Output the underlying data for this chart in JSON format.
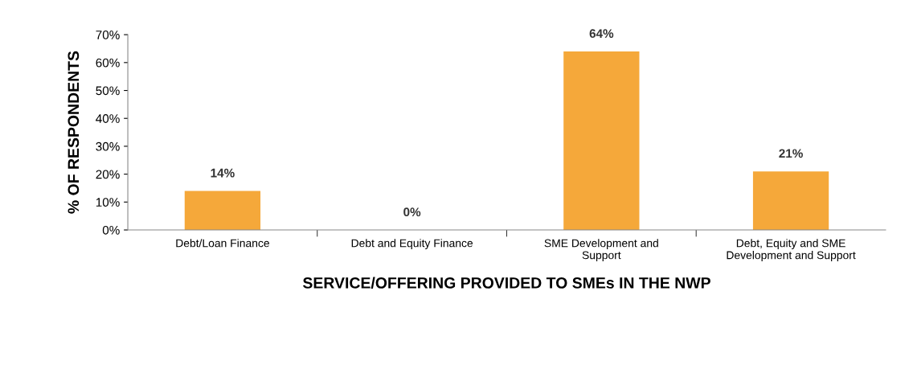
{
  "chart_data": {
    "type": "bar",
    "xlabel": "SERVICE/OFFERING PROVIDED TO SMEs IN THE NWP",
    "ylabel": "% OF RESPONDENTS",
    "categories": [
      "Debt/Loan Finance",
      "Debt and Equity Finance",
      "SME Development and\nSupport",
      "Debt, Equity and SME\nDevelopment and Support"
    ],
    "values": [
      14,
      0,
      64,
      21
    ],
    "value_labels": [
      "14%",
      "0%",
      "64%",
      "21%"
    ],
    "color": "#f5a83a",
    "ylim": [
      0,
      70
    ],
    "yticks": [
      {
        "value": 0,
        "label": "0%"
      },
      {
        "value": 10,
        "label": "10%"
      },
      {
        "value": 20,
        "label": "20%"
      },
      {
        "value": 30,
        "label": "30%"
      },
      {
        "value": 40,
        "label": "40%"
      },
      {
        "value": 50,
        "label": "50%"
      },
      {
        "value": 60,
        "label": "60%"
      },
      {
        "value": 70,
        "label": "70%"
      }
    ],
    "grid": false,
    "legend": false
  }
}
